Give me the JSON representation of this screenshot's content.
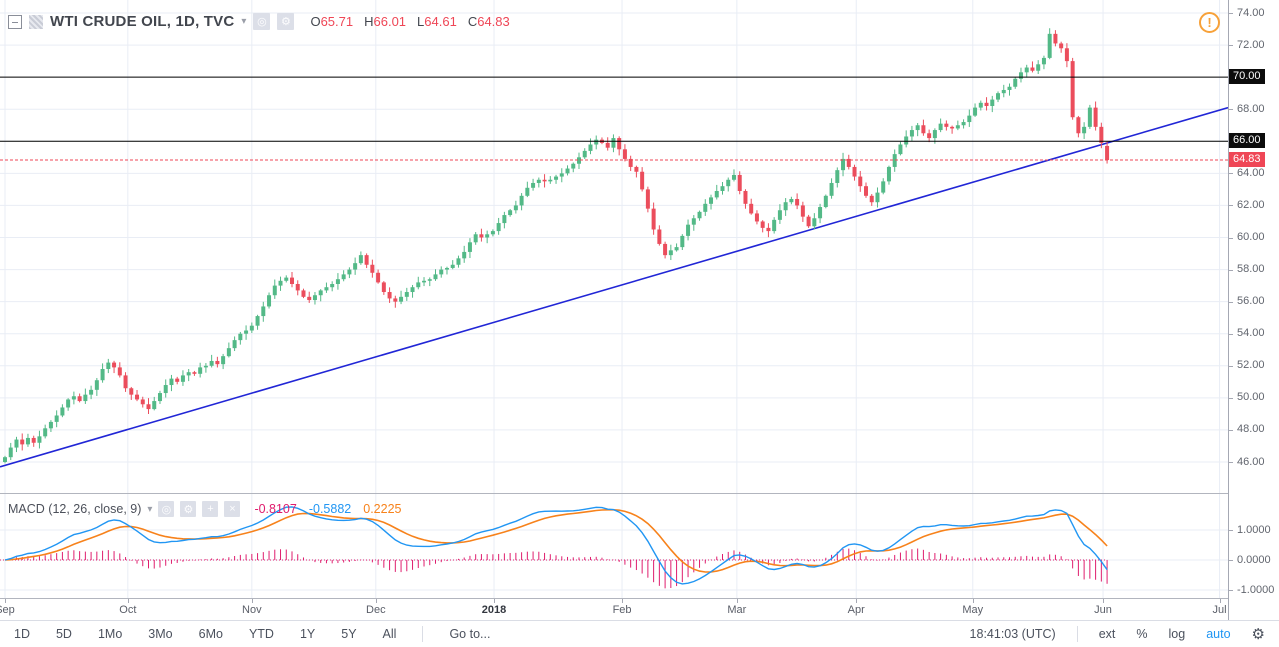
{
  "header": {
    "symbol_title": "WTI CRUDE OIL, 1D, TVC",
    "caret": "▾",
    "ohlc": {
      "o_label": "O",
      "o": "65.71",
      "h_label": "H",
      "h": "66.01",
      "l_label": "L",
      "l": "64.61",
      "c_label": "C",
      "c": "64.83"
    },
    "icons": {
      "collapse": "collapse-icon",
      "logo": "instrument-logo-icon",
      "eye": "◎",
      "gear": "⚙",
      "warning": "!"
    }
  },
  "indicator_header": {
    "label": "MACD",
    "params": "(12, 26, close, 9)",
    "caret": "▾",
    "icons": {
      "eye": "◎",
      "gear": "⚙",
      "plus": "+",
      "close": "×"
    },
    "values": {
      "histogram": "-0.8107",
      "macd": "-0.5882",
      "signal": "0.2225"
    }
  },
  "price_axis": {
    "ticks": [
      "74.00",
      "72.00",
      "70.00",
      "68.00",
      "66.00",
      "64.00",
      "62.00",
      "60.00",
      "58.00",
      "56.00",
      "54.00",
      "52.00",
      "50.00",
      "48.00",
      "46.00"
    ],
    "level_badges": [
      "70.00",
      "66.00"
    ],
    "last_price_badge": "64.83"
  },
  "macd_axis": {
    "ticks": [
      "1.0000",
      "0.0000",
      "-1.0000"
    ]
  },
  "time_axis": {
    "months": [
      {
        "label": "Sep",
        "day": 0
      },
      {
        "label": "Oct",
        "day": 21.4
      },
      {
        "label": "Nov",
        "day": 43
      },
      {
        "label": "Dec",
        "day": 64.6
      },
      {
        "label": "2018",
        "day": 85.2,
        "bold": true
      },
      {
        "label": "Feb",
        "day": 107.5
      },
      {
        "label": "Mar",
        "day": 127.5
      },
      {
        "label": "Apr",
        "day": 148.3
      },
      {
        "label": "May",
        "day": 168.6
      },
      {
        "label": "Jun",
        "day": 191.3
      },
      {
        "label": "Jul",
        "day": 211.6
      }
    ]
  },
  "toolbar": {
    "ranges": [
      "1D",
      "5D",
      "1Mo",
      "3Mo",
      "6Mo",
      "YTD",
      "1Y",
      "5Y",
      "All"
    ],
    "goto": "Go to...",
    "clock": "18:41:03 (UTC)",
    "ext": "ext",
    "percent": "%",
    "log": "log",
    "auto": "auto"
  },
  "chart_data": {
    "type": "candlestick",
    "symbol": "WTI CRUDE OIL",
    "interval": "1D",
    "exchange": "TVC",
    "title": "WTI CRUDE OIL, 1D, TVC",
    "ylim": [
      44.1,
      74.8
    ],
    "y_ticks": [
      74,
      72,
      70,
      68,
      66,
      64,
      62,
      60,
      58,
      56,
      54,
      52,
      50,
      48,
      46
    ],
    "grid": true,
    "first_open": 46.0,
    "closes": [
      46.3,
      46.9,
      47.4,
      47.1,
      47.5,
      47.2,
      47.6,
      48.1,
      48.5,
      48.9,
      49.4,
      49.9,
      50.1,
      49.8,
      50.2,
      50.5,
      51.1,
      51.8,
      52.2,
      51.9,
      51.4,
      50.6,
      50.2,
      49.9,
      49.6,
      49.3,
      49.8,
      50.3,
      50.8,
      51.2,
      51.0,
      51.4,
      51.6,
      51.5,
      51.9,
      52.0,
      52.3,
      52.1,
      52.6,
      53.1,
      53.6,
      54.0,
      54.2,
      54.5,
      55.1,
      55.7,
      56.4,
      57.0,
      57.3,
      57.5,
      57.1,
      56.7,
      56.3,
      56.1,
      56.4,
      56.7,
      56.9,
      57.1,
      57.4,
      57.7,
      58.0,
      58.4,
      58.9,
      58.3,
      57.8,
      57.2,
      56.6,
      56.2,
      56.0,
      56.3,
      56.6,
      56.9,
      57.2,
      57.3,
      57.4,
      57.7,
      58.0,
      58.1,
      58.3,
      58.7,
      59.1,
      59.7,
      60.2,
      60.0,
      60.2,
      60.4,
      60.9,
      61.4,
      61.7,
      62.0,
      62.6,
      63.1,
      63.4,
      63.6,
      63.5,
      63.6,
      63.8,
      64.0,
      64.3,
      64.6,
      65.0,
      65.4,
      65.8,
      66.1,
      65.9,
      65.6,
      66.2,
      65.5,
      64.9,
      64.4,
      64.1,
      63.0,
      61.8,
      60.5,
      59.6,
      58.9,
      59.2,
      59.4,
      60.1,
      60.8,
      61.2,
      61.6,
      62.1,
      62.5,
      62.9,
      63.2,
      63.6,
      63.9,
      62.9,
      62.1,
      61.5,
      61.0,
      60.6,
      60.4,
      61.1,
      61.7,
      62.2,
      62.4,
      62.0,
      61.3,
      60.7,
      61.2,
      61.9,
      62.6,
      63.4,
      64.2,
      64.9,
      64.4,
      63.8,
      63.2,
      62.6,
      62.2,
      62.8,
      63.5,
      64.4,
      65.2,
      65.8,
      66.3,
      66.7,
      67.0,
      66.5,
      66.2,
      66.7,
      67.1,
      66.9,
      66.8,
      67.0,
      67.2,
      67.6,
      68.1,
      68.4,
      68.2,
      68.6,
      69.0,
      69.2,
      69.4,
      69.9,
      70.3,
      70.6,
      70.4,
      70.8,
      71.2,
      72.7,
      72.1,
      71.8,
      71.0,
      67.5,
      66.5,
      66.9,
      68.1,
      66.9,
      65.9,
      64.83
    ],
    "last_candle": {
      "open": 65.71,
      "high": 66.01,
      "low": 64.61,
      "close": 64.83
    },
    "levels": {
      "horizontal_lines": [
        70.0,
        66.0
      ],
      "last_price_line": 64.83
    },
    "trendline": {
      "start_price": 45.7,
      "end_price": 68.1
    },
    "indicator": {
      "type": "MACD",
      "fast": 12,
      "slow": 26,
      "source": "close",
      "signal": 9,
      "last_values": {
        "histogram": -0.8107,
        "macd": -0.5882,
        "signal": 0.2225
      },
      "y_ticks": [
        1.0,
        0.0,
        -1.0
      ],
      "legend_position": "top-left"
    },
    "colors": {
      "up": "#53b987",
      "down": "#eb4d5c",
      "trendline": "#2126d6",
      "level_line": "#000000",
      "last_price": "#ef4656",
      "macd_line": "#2196f3",
      "signal_line": "#f7821b",
      "histogram": "#df1d6d",
      "grid": "#e9edf5",
      "accent_auto": "#2196f3",
      "warning": "#f7a139"
    }
  }
}
